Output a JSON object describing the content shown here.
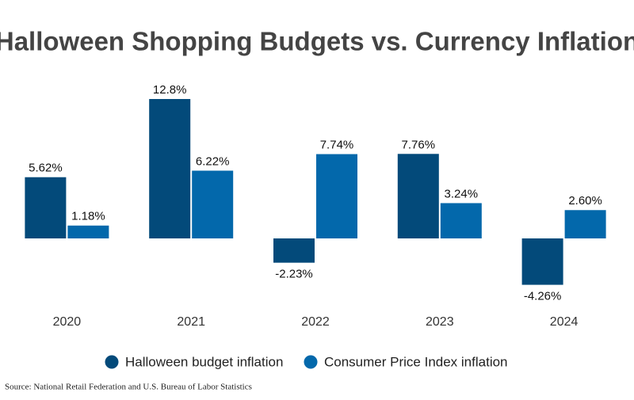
{
  "chart_data": {
    "type": "bar",
    "title": "Halloween Shopping Budgets vs. Currency Inflation",
    "categories": [
      "2020",
      "2021",
      "2022",
      "2023",
      "2024"
    ],
    "series": [
      {
        "name": "Halloween budget inflation",
        "color": "#034a7a",
        "values": [
          5.62,
          12.8,
          -2.23,
          7.76,
          -4.26
        ],
        "value_labels": [
          "5.62%",
          "12.8%",
          "-2.23%",
          "7.76%",
          "-4.26%"
        ]
      },
      {
        "name": "Consumer Price Index inflation",
        "color": "#0368ab",
        "values": [
          1.18,
          6.22,
          7.74,
          3.24,
          2.6
        ],
        "value_labels": [
          "1.18%",
          "6.22%",
          "7.74%",
          "3.24%",
          "2.60%"
        ]
      }
    ],
    "ylim": [
      -5,
      14
    ],
    "legend": "bottom",
    "source": "Source: National Retail Federation and U.S. Bureau of Labor Statistics"
  }
}
